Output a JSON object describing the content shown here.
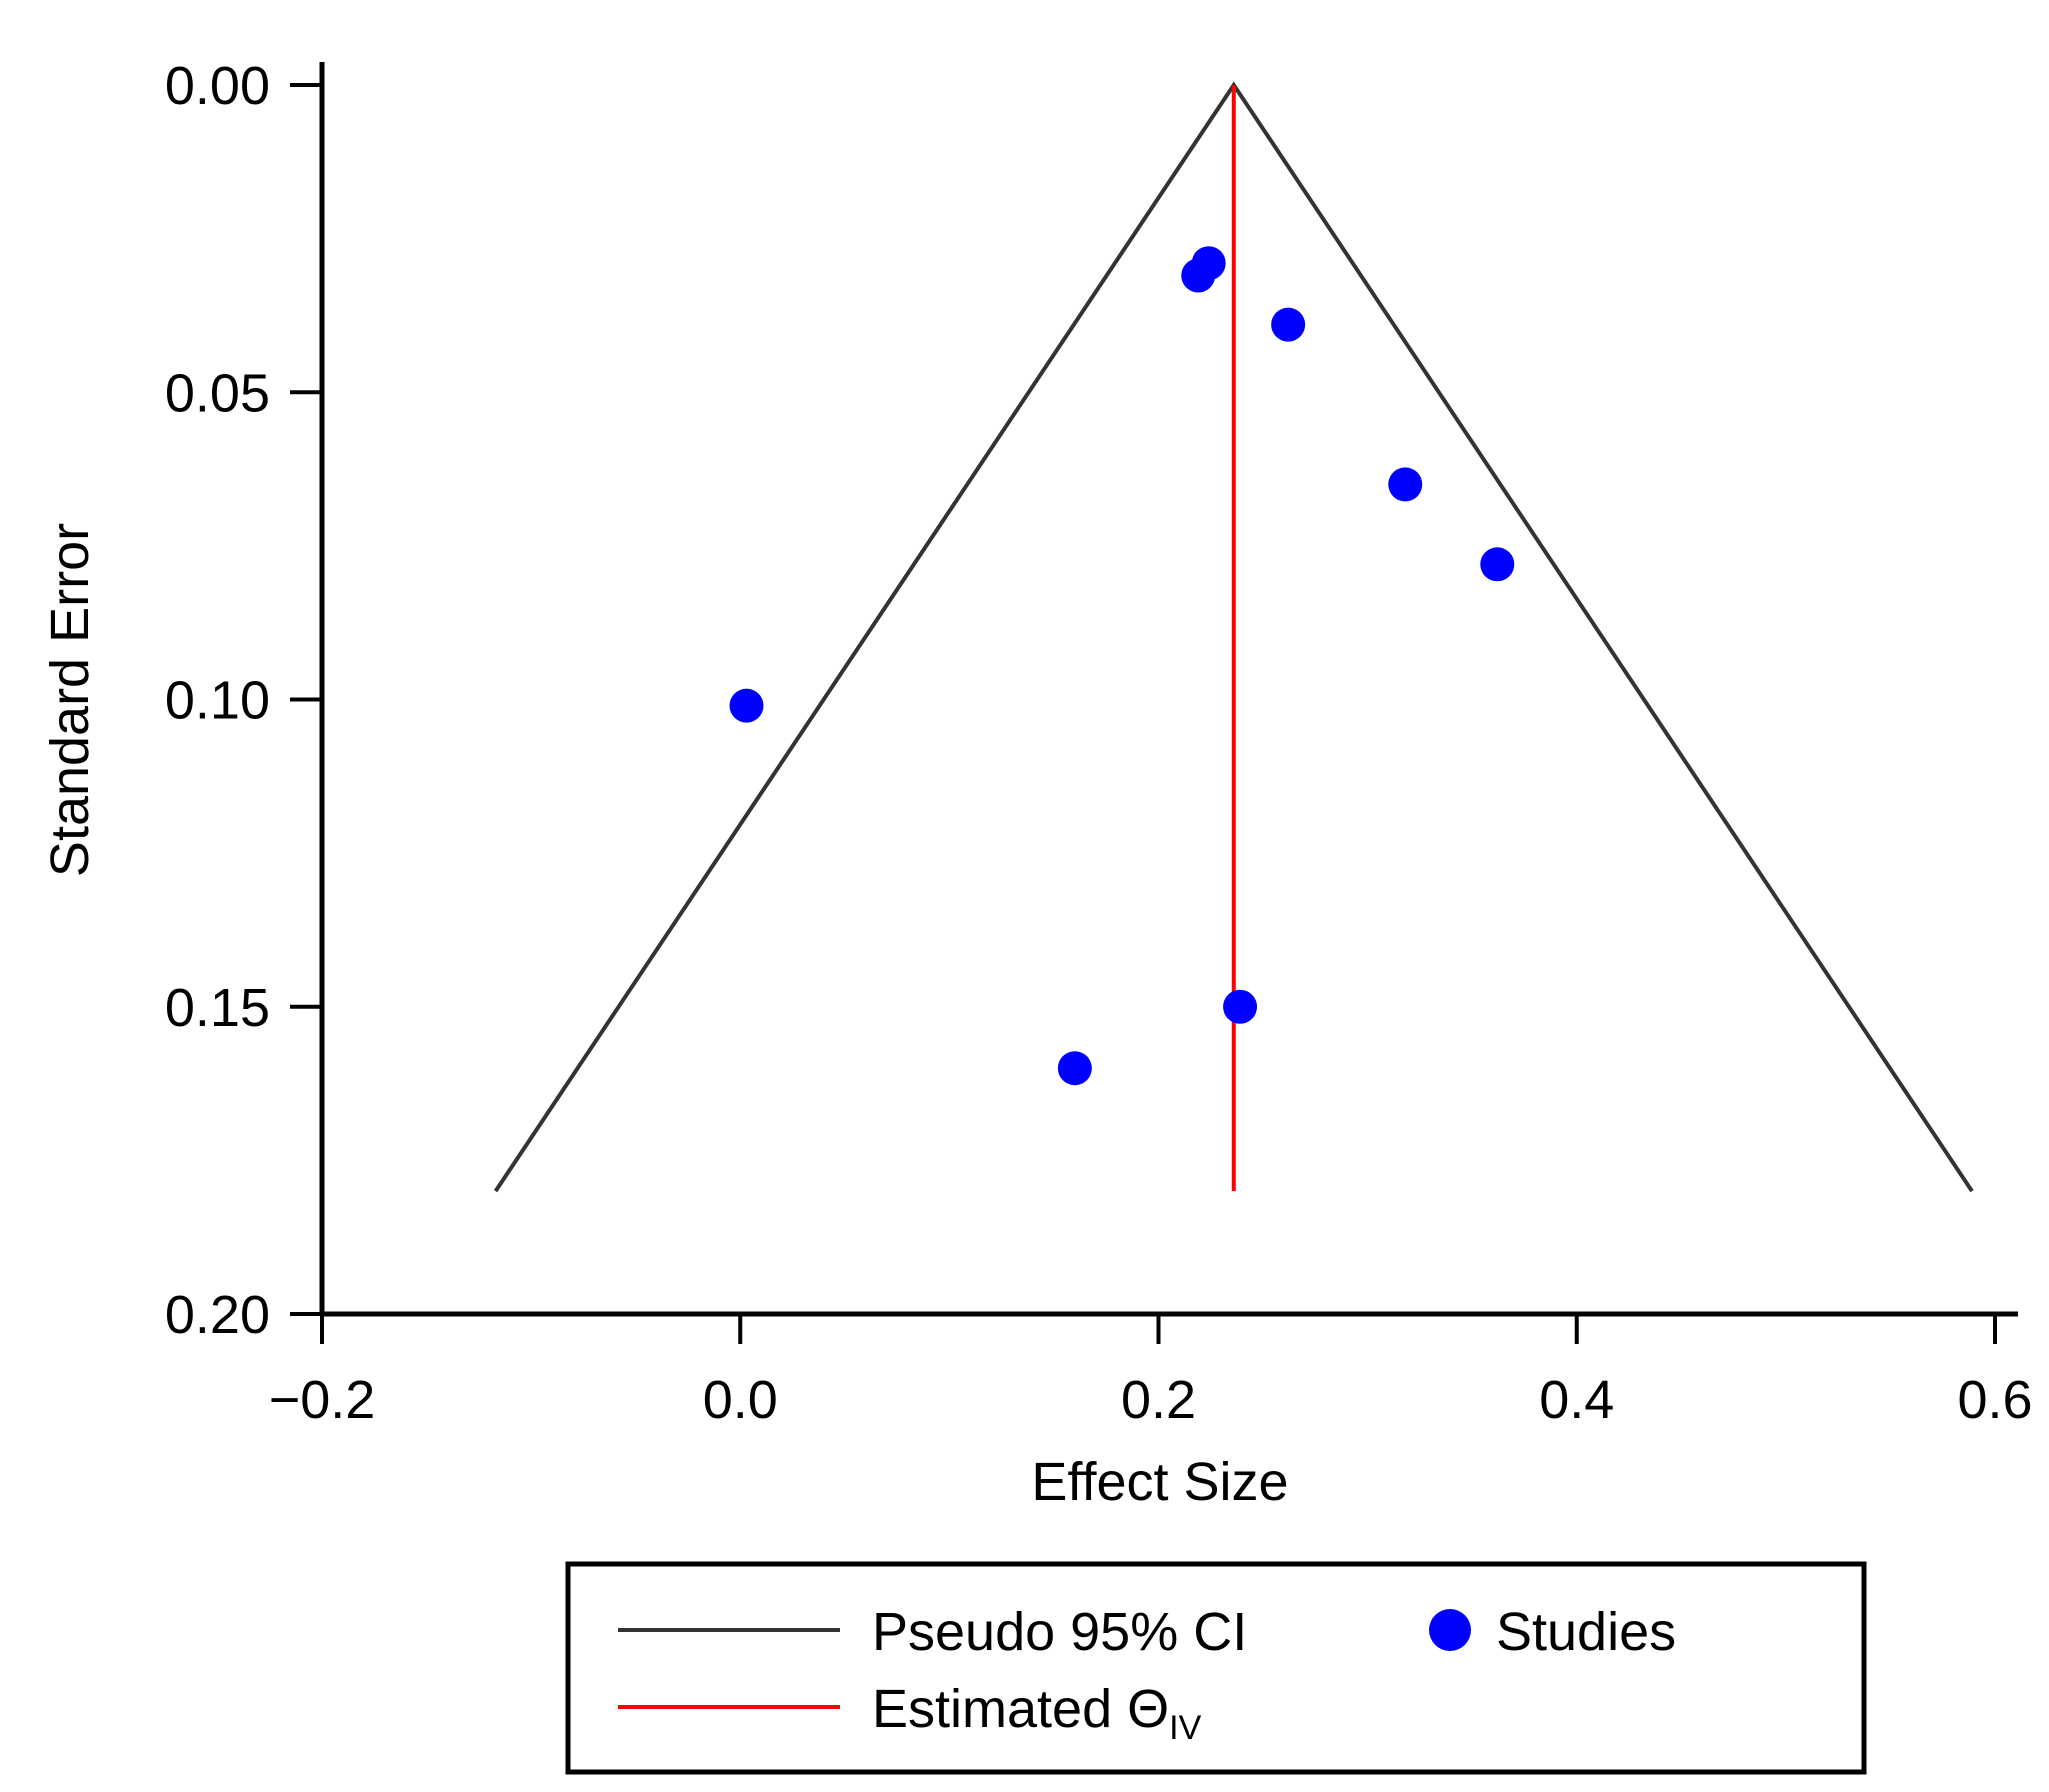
{
  "chart_data": {
    "type": "scatter",
    "subtype": "funnel-plot",
    "title": "",
    "xlabel": "Effect Size",
    "ylabel": "Standard Error",
    "xlim": [
      -0.2,
      0.6
    ],
    "ylim": [
      0.0,
      0.2
    ],
    "y_inverted": true,
    "x_ticks": [
      -0.2,
      0.0,
      0.2,
      0.4,
      0.6
    ],
    "x_tick_labels": [
      "−0.2",
      "0.0",
      "0.2",
      "0.4",
      "0.6"
    ],
    "y_ticks": [
      0.0,
      0.05,
      0.1,
      0.15,
      0.2
    ],
    "y_tick_labels": [
      "0.00",
      "0.05",
      "0.10",
      "0.15",
      "0.20"
    ],
    "grid": false,
    "legend_position": "bottom",
    "series": [
      {
        "name": "Studies",
        "kind": "points",
        "color": "#0000ff",
        "x": [
          0.224,
          0.219,
          0.262,
          0.318,
          0.362,
          0.003,
          0.239,
          0.16
        ],
        "y": [
          0.029,
          0.031,
          0.039,
          0.065,
          0.078,
          0.101,
          0.15,
          0.16
        ]
      },
      {
        "name": "Pseudo 95% CI",
        "kind": "funnel",
        "color": "#333333",
        "apex": [
          0.236,
          0.0
        ],
        "left_end": [
          -0.117,
          0.18
        ],
        "right_end": [
          0.589,
          0.18
        ]
      },
      {
        "name": "Estimated ΘIV",
        "kind": "vertical-line",
        "color": "#ff0000",
        "x": 0.236,
        "y_range": [
          0.0,
          0.18
        ]
      }
    ],
    "legend": {
      "ci_label": "Pseudo 95% CI",
      "studies_label": "Studies",
      "estimated_label": "Estimated ",
      "theta_symbol": "Θ",
      "theta_subscript": "IV"
    }
  }
}
